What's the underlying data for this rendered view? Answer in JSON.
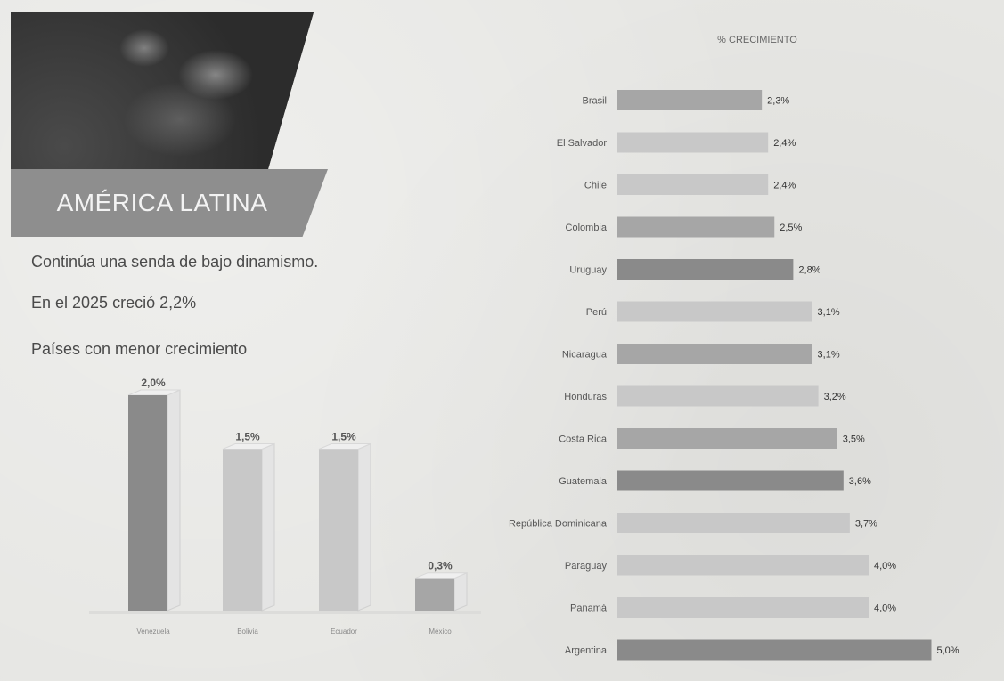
{
  "header": {
    "region_title": "AMÉRICA LATINA",
    "lead_line1": "Continúa una senda de bajo dinamismo.",
    "lead_line2": "En el 2025 creció 2,2%"
  },
  "left_chart_subtitle": "Países con menor crecimiento",
  "right_chart_title": "% CRECIMIENTO",
  "colors": {
    "dark_bar": "#8a8a8a",
    "mid_bar": "#a6a6a6",
    "light_bar": "#c8c8c8",
    "band": "#8e8e8e"
  },
  "chart_data": [
    {
      "type": "bar",
      "orientation": "vertical",
      "title": "Países con menor crecimiento",
      "categories": [
        "Venezuela",
        "Bolivia",
        "Ecuador",
        "México"
      ],
      "values": [
        2.0,
        1.5,
        1.5,
        0.3
      ],
      "value_labels": [
        "2,0%",
        "1,5%",
        "1,5%",
        "0,3%"
      ],
      "ylim": [
        0,
        2.0
      ],
      "grid": false
    },
    {
      "type": "bar",
      "orientation": "horizontal",
      "title": "% CRECIMIENTO",
      "categories": [
        "Brasil",
        "El Salvador",
        "Chile",
        "Colombia",
        "Uruguay",
        "Perú",
        "Nicaragua",
        "Honduras",
        "Costa Rica",
        "Guatemala",
        "República Dominicana",
        "Paraguay",
        "Panamá",
        "Argentina"
      ],
      "values": [
        2.3,
        2.4,
        2.4,
        2.5,
        2.8,
        3.1,
        3.1,
        3.2,
        3.5,
        3.6,
        3.7,
        4.0,
        4.0,
        5.0
      ],
      "value_labels": [
        "2,3%",
        "2,4%",
        "2,4%",
        "2,5%",
        "2,8%",
        "3,1%",
        "3,1%",
        "3,2%",
        "3,5%",
        "3,6%",
        "3,7%",
        "4,0%",
        "4,0%",
        "5,0%"
      ],
      "xlim": [
        0,
        5.0
      ],
      "grid": false
    }
  ]
}
